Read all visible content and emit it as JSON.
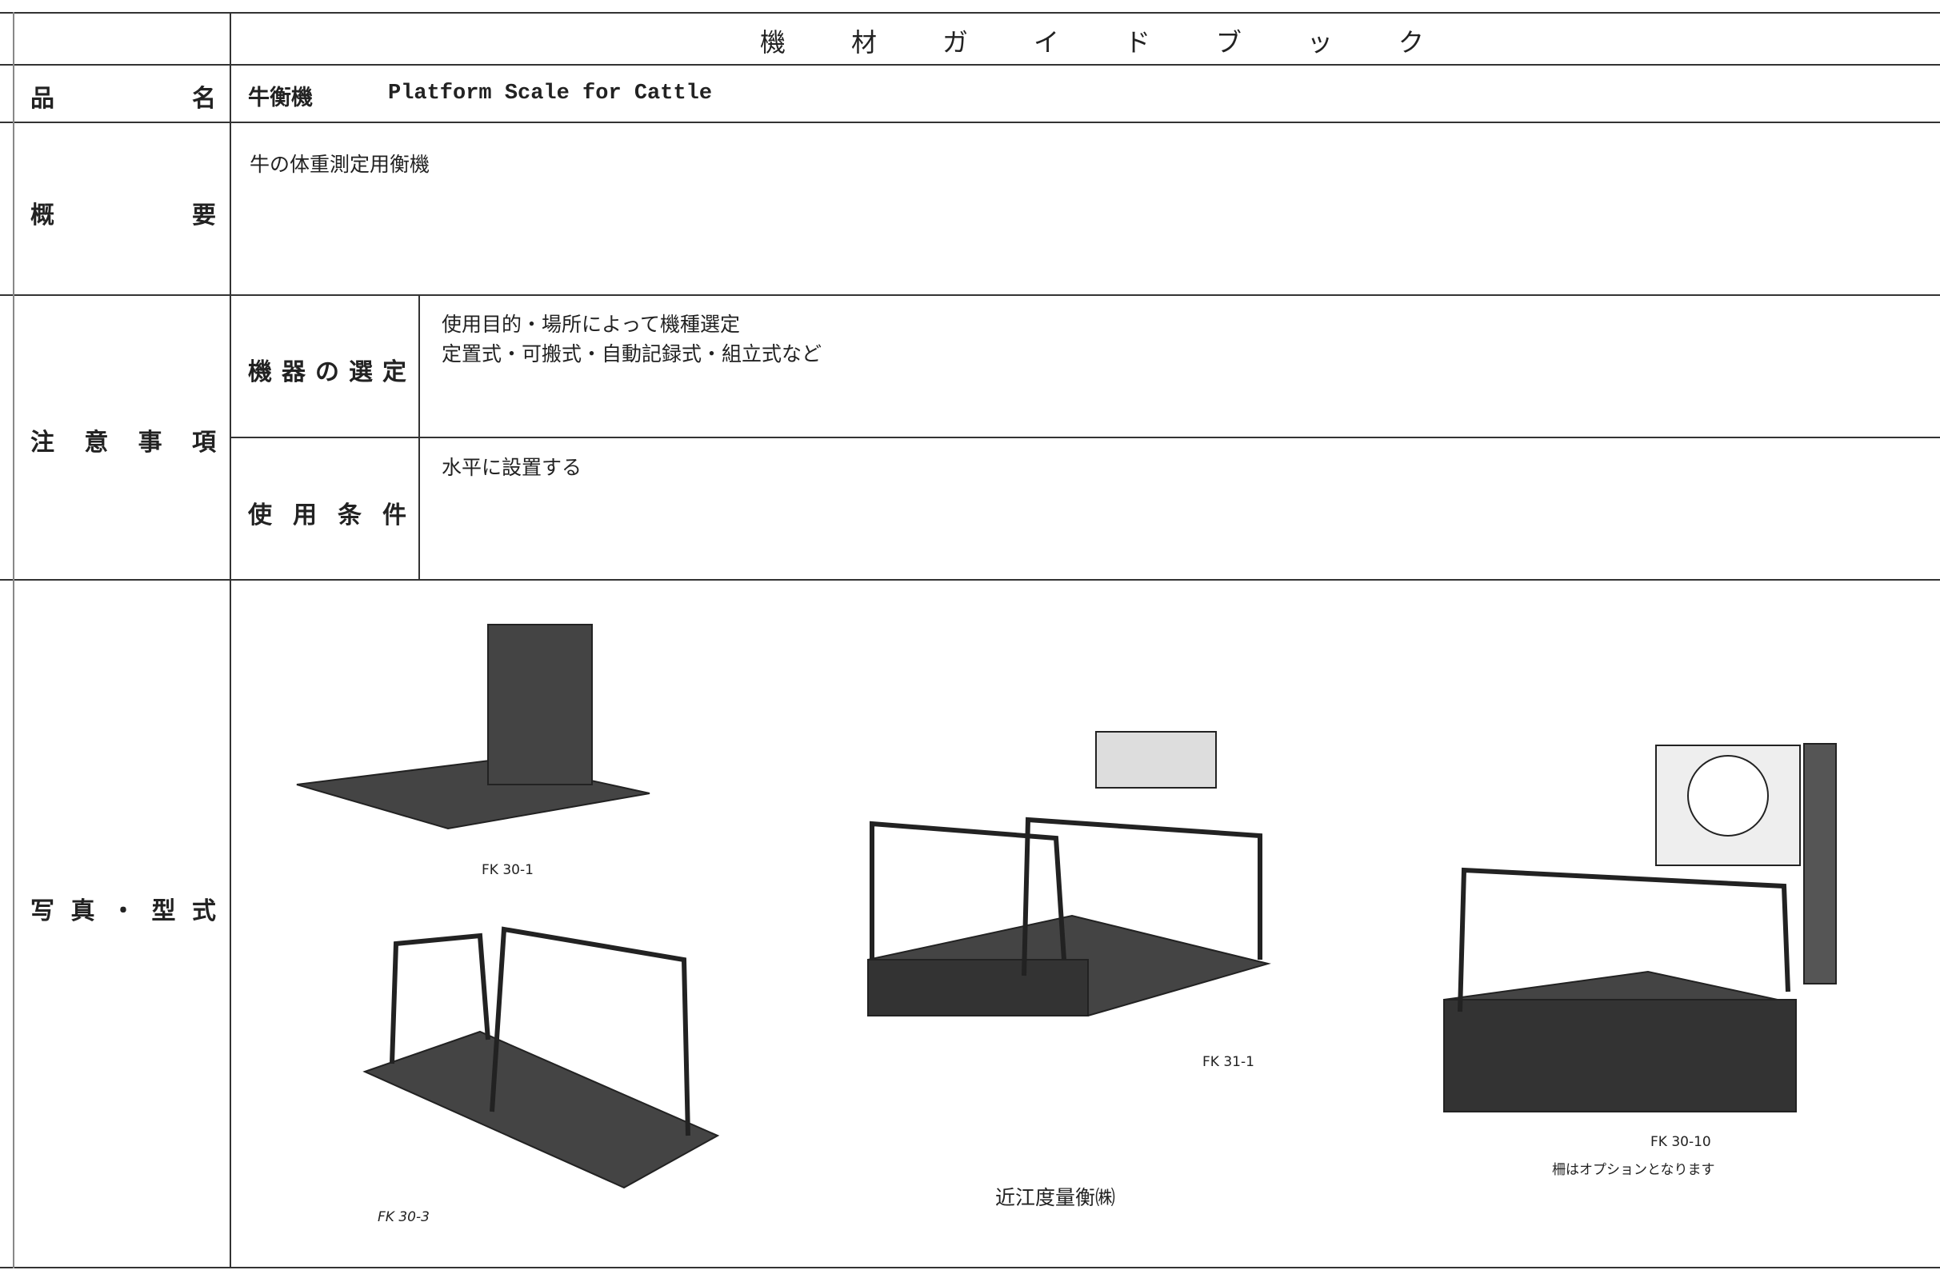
{
  "header": {
    "title": "機材ガイドブック"
  },
  "rows": {
    "name": {
      "label": "品名",
      "name_ja": "牛衡機",
      "name_en": "Platform Scale for Cattle"
    },
    "overview": {
      "label": "概要",
      "text": "牛の体重測定用衡機"
    },
    "notes": {
      "label": "注意事項",
      "items": [
        {
          "label": "機器の選定",
          "lines": [
            "使用目的・場所によって機種選定",
            "定置式・可搬式・自動記録式・組立式など"
          ]
        },
        {
          "label": "使用条件",
          "lines": [
            "水平に設置する"
          ]
        }
      ]
    },
    "photos": {
      "label": "写真・型式",
      "captions": [
        "FK 30-1",
        "FK 30-3",
        "FK 31-1",
        "FK 30-10"
      ],
      "note": "柵はオプションとなります",
      "maker": "近江度量衡㈱"
    }
  }
}
